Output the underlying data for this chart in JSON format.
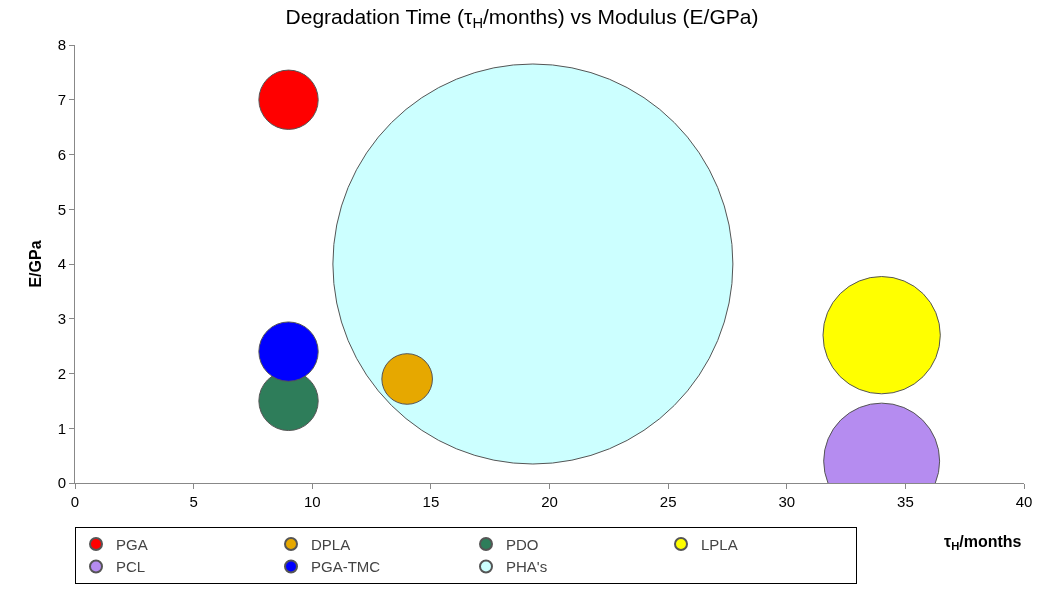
{
  "chart_data": {
    "type": "bubble",
    "title": "Degradation Time (τ$_{H}$/months) vs Modulus (E/GPa)",
    "xlabel": "τ$_{H}$/months",
    "ylabel": "E/GPa",
    "xlim": [
      0,
      40
    ],
    "xticks": [
      0,
      5,
      10,
      15,
      20,
      25,
      30,
      35,
      40
    ],
    "ylim": [
      0,
      8
    ],
    "yticks": [
      0,
      1,
      2,
      3,
      4,
      5,
      6,
      7,
      8
    ],
    "grid": false,
    "legend": "bottom left",
    "marker": "circle",
    "series": [
      {
        "name": "PGA",
        "color": "#ff0000",
        "x": [
          9
        ],
        "values": [
          7
        ],
        "sizes": [
          0.022
        ]
      },
      {
        "name": "DPLA",
        "color": "#e6a800",
        "x": [
          14
        ],
        "values": [
          1.9
        ],
        "sizes": [
          0.016
        ]
      },
      {
        "name": "PDO",
        "color": "#2e7d5a",
        "x": [
          9
        ],
        "values": [
          1.5
        ],
        "sizes": [
          0.022
        ]
      },
      {
        "name": "LPLA",
        "color": "#ffff00",
        "x": [
          34
        ],
        "values": [
          2.7
        ],
        "sizes": [
          0.086
        ]
      },
      {
        "name": "PCL",
        "color": "#b58cf0",
        "x": [
          34
        ],
        "values": [
          0.4
        ],
        "sizes": [
          0.084
        ]
      },
      {
        "name": "PGA-TMC",
        "color": "#0000ff",
        "x": [
          9
        ],
        "values": [
          2.4
        ],
        "sizes": [
          0.022
        ]
      },
      {
        "name": "PHA's",
        "color": "#ccffff",
        "x": [
          19.3
        ],
        "values": [
          4
        ],
        "sizes": [
          1
        ]
      }
    ]
  }
}
